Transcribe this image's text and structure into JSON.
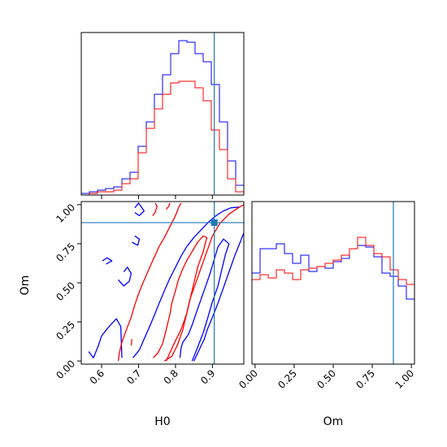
{
  "chart_data": {
    "type": "corner",
    "parameters": [
      "H0",
      "Om"
    ],
    "truth": {
      "H0": 0.905,
      "Om": 0.885
    },
    "colors": {
      "series_a": "#0000ff",
      "series_b": "#ff0000",
      "truth": "#1f77b4"
    },
    "h0_axis": {
      "label": "H0",
      "range": [
        0.545,
        0.985
      ],
      "ticks": [
        "0.6",
        "0.7",
        "0.8",
        "0.9"
      ],
      "tick_values": [
        0.6,
        0.7,
        0.8,
        0.9
      ]
    },
    "om_axis": {
      "label": "Om",
      "range": [
        -0.02,
        1.02
      ],
      "ticks": [
        "0.00",
        "0.25",
        "0.50",
        "0.75",
        "1.00"
      ],
      "tick_values": [
        0.0,
        0.25,
        0.5,
        0.75,
        1.0
      ]
    },
    "hist_h0": {
      "bin_edges": [
        0.545,
        0.567,
        0.589,
        0.611,
        0.633,
        0.655,
        0.677,
        0.699,
        0.721,
        0.743,
        0.765,
        0.787,
        0.809,
        0.831,
        0.853,
        0.875,
        0.897,
        0.919,
        0.941,
        0.963,
        0.985
      ],
      "series": [
        {
          "color": "blue",
          "values": [
            0.01,
            0.02,
            0.03,
            0.04,
            0.05,
            0.1,
            0.14,
            0.3,
            0.45,
            0.62,
            0.74,
            0.87,
            0.95,
            0.94,
            0.87,
            0.82,
            0.68,
            0.45,
            0.21,
            0.06
          ]
        },
        {
          "color": "red",
          "values": [
            0.0,
            0.01,
            0.02,
            0.02,
            0.03,
            0.07,
            0.1,
            0.26,
            0.41,
            0.53,
            0.62,
            0.69,
            0.7,
            0.7,
            0.66,
            0.58,
            0.4,
            0.28,
            0.1,
            0.02
          ]
        }
      ]
    },
    "hist_om": {
      "bin_edges": [
        -0.02,
        0.032,
        0.084,
        0.136,
        0.188,
        0.24,
        0.292,
        0.344,
        0.396,
        0.448,
        0.5,
        0.552,
        0.604,
        0.656,
        0.708,
        0.76,
        0.812,
        0.864,
        0.916,
        0.968,
        1.02
      ],
      "series": [
        {
          "color": "blue",
          "values": [
            0.56,
            0.71,
            0.71,
            0.74,
            0.68,
            0.62,
            0.67,
            0.57,
            0.6,
            0.59,
            0.63,
            0.65,
            0.71,
            0.73,
            0.72,
            0.66,
            0.56,
            0.54,
            0.48,
            0.4
          ]
        },
        {
          "color": "red",
          "values": [
            0.52,
            0.55,
            0.53,
            0.58,
            0.56,
            0.52,
            0.58,
            0.59,
            0.6,
            0.62,
            0.64,
            0.67,
            0.71,
            0.78,
            0.73,
            0.68,
            0.66,
            0.58,
            0.52,
            0.49
          ]
        }
      ]
    },
    "contours_2d": [
      {
        "color": "blue",
        "level": "outer",
        "points": [
          [
            0.565,
            0.06
          ],
          [
            0.578,
            0.02
          ],
          [
            0.59,
            0.09
          ],
          [
            0.6,
            0.16
          ],
          [
            0.62,
            0.22
          ],
          [
            0.64,
            0.27
          ],
          [
            0.652,
            0.22
          ],
          [
            0.655,
            0.02
          ]
        ]
      },
      {
        "color": "blue",
        "level": "outer",
        "points": [
          [
            0.645,
            0.52
          ],
          [
            0.66,
            0.48
          ],
          [
            0.675,
            0.51
          ],
          [
            0.68,
            0.56
          ],
          [
            0.67,
            0.6
          ],
          [
            0.66,
            0.57
          ]
        ]
      },
      {
        "color": "blue",
        "level": "outer",
        "points": [
          [
            0.612,
            0.62
          ],
          [
            0.628,
            0.64
          ],
          [
            0.615,
            0.66
          ],
          [
            0.602,
            0.64
          ]
        ]
      },
      {
        "color": "blue",
        "level": "outer",
        "points": [
          [
            0.682,
            0.76
          ],
          [
            0.698,
            0.74
          ],
          [
            0.702,
            0.78
          ],
          [
            0.69,
            0.8
          ]
        ]
      },
      {
        "color": "blue",
        "level": "outer",
        "points": [
          [
            0.69,
            0.95
          ],
          [
            0.702,
            0.93
          ],
          [
            0.715,
            0.96
          ],
          [
            0.7,
            1.01
          ],
          [
            0.69,
            0.98
          ]
        ]
      },
      {
        "color": "blue",
        "level": "outer",
        "points": [
          [
            0.685,
            0.02
          ],
          [
            0.702,
            0.07
          ],
          [
            0.715,
            0.14
          ],
          [
            0.73,
            0.22
          ],
          [
            0.744,
            0.3
          ],
          [
            0.756,
            0.37
          ],
          [
            0.77,
            0.45
          ],
          [
            0.785,
            0.53
          ],
          [
            0.8,
            0.6
          ],
          [
            0.815,
            0.67
          ],
          [
            0.83,
            0.73
          ],
          [
            0.85,
            0.79
          ],
          [
            0.87,
            0.84
          ],
          [
            0.89,
            0.89
          ],
          [
            0.91,
            0.93
          ],
          [
            0.93,
            0.96
          ],
          [
            0.95,
            0.98
          ],
          [
            0.975,
            0.985
          ]
        ]
      },
      {
        "color": "blue",
        "level": "outer",
        "points": [
          [
            0.85,
            0.0
          ],
          [
            0.86,
            0.05
          ],
          [
            0.87,
            0.1
          ],
          [
            0.878,
            0.14
          ],
          [
            0.886,
            0.2
          ],
          [
            0.9,
            0.28
          ],
          [
            0.915,
            0.37
          ],
          [
            0.93,
            0.47
          ],
          [
            0.945,
            0.57
          ],
          [
            0.96,
            0.67
          ],
          [
            0.975,
            0.76
          ],
          [
            0.985,
            0.82
          ]
        ]
      },
      {
        "color": "blue",
        "level": "inner",
        "points": [
          [
            0.812,
            0.02
          ],
          [
            0.815,
            0.08
          ],
          [
            0.82,
            0.12
          ],
          [
            0.835,
            0.17
          ],
          [
            0.845,
            0.23
          ],
          [
            0.855,
            0.3
          ],
          [
            0.87,
            0.4
          ],
          [
            0.885,
            0.5
          ],
          [
            0.895,
            0.57
          ],
          [
            0.905,
            0.65
          ],
          [
            0.915,
            0.73
          ],
          [
            0.93,
            0.78
          ],
          [
            0.945,
            0.75
          ],
          [
            0.935,
            0.68
          ],
          [
            0.925,
            0.58
          ],
          [
            0.915,
            0.48
          ],
          [
            0.9,
            0.38
          ],
          [
            0.888,
            0.28
          ],
          [
            0.875,
            0.18
          ],
          [
            0.862,
            0.1
          ],
          [
            0.852,
            0.04
          ],
          [
            0.845,
            0.0
          ]
        ]
      },
      {
        "color": "red",
        "level": "outer",
        "points": [
          [
            0.645,
            0.0
          ],
          [
            0.648,
            0.05
          ],
          [
            0.655,
            0.12
          ],
          [
            0.667,
            0.2
          ],
          [
            0.68,
            0.28
          ],
          [
            0.69,
            0.36
          ],
          [
            0.7,
            0.43
          ],
          [
            0.712,
            0.5
          ],
          [
            0.725,
            0.57
          ],
          [
            0.74,
            0.65
          ],
          [
            0.755,
            0.73
          ],
          [
            0.77,
            0.79
          ],
          [
            0.785,
            0.86
          ],
          [
            0.8,
            0.93
          ],
          [
            0.81,
            0.99
          ],
          [
            0.815,
            1.01
          ]
        ]
      },
      {
        "color": "red",
        "level": "outer",
        "points": [
          [
            0.775,
            0.0
          ],
          [
            0.79,
            0.08
          ],
          [
            0.8,
            0.13
          ],
          [
            0.815,
            0.2
          ],
          [
            0.83,
            0.3
          ],
          [
            0.84,
            0.4
          ],
          [
            0.855,
            0.5
          ],
          [
            0.87,
            0.6
          ],
          [
            0.885,
            0.7
          ],
          [
            0.9,
            0.8
          ],
          [
            0.92,
            0.88
          ],
          [
            0.945,
            0.94
          ],
          [
            0.97,
            0.98
          ],
          [
            0.985,
            1.0
          ]
        ]
      },
      {
        "color": "red",
        "level": "outer",
        "points": [
          [
            0.68,
            0.1
          ],
          [
            0.682,
            0.14
          ]
        ]
      },
      {
        "color": "red",
        "level": "outer",
        "points": [
          [
            0.738,
            0.93
          ],
          [
            0.745,
            0.95
          ],
          [
            0.75,
            0.99
          ],
          [
            0.745,
            1.01
          ]
        ]
      },
      {
        "color": "red",
        "level": "outer",
        "points": [
          [
            0.775,
            0.97
          ],
          [
            0.782,
            0.99
          ],
          [
            0.785,
            1.01
          ]
        ]
      },
      {
        "color": "red",
        "level": "inner",
        "points": [
          [
            0.74,
            0.02
          ],
          [
            0.752,
            0.05
          ],
          [
            0.765,
            0.11
          ],
          [
            0.775,
            0.2
          ],
          [
            0.785,
            0.3
          ],
          [
            0.79,
            0.37
          ],
          [
            0.8,
            0.45
          ],
          [
            0.808,
            0.52
          ],
          [
            0.818,
            0.58
          ],
          [
            0.83,
            0.64
          ],
          [
            0.845,
            0.7
          ],
          [
            0.86,
            0.76
          ],
          [
            0.875,
            0.8
          ],
          [
            0.885,
            0.79
          ],
          [
            0.875,
            0.7
          ],
          [
            0.86,
            0.6
          ],
          [
            0.85,
            0.5
          ],
          [
            0.84,
            0.4
          ],
          [
            0.83,
            0.3
          ],
          [
            0.82,
            0.2
          ],
          [
            0.805,
            0.1
          ],
          [
            0.79,
            0.03
          ],
          [
            0.77,
            0.0
          ]
        ]
      }
    ]
  }
}
